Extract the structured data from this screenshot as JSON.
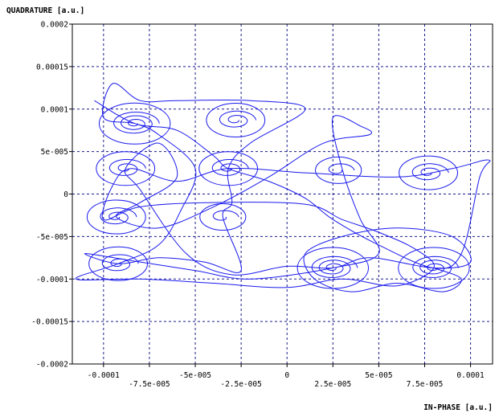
{
  "chart_data": {
    "type": "line",
    "xlabel": "IN-PHASE  [a.u.]",
    "ylabel": "QUADRATURE  [a.u.]",
    "xlim": [
      -0.000117,
      0.000112
    ],
    "ylim": [
      -0.0002,
      0.0002
    ],
    "grid": true,
    "grid_style": "dashed",
    "x_ticks_upper": [
      "-0.0001",
      "-5e-005",
      "0",
      "5e-005",
      "0.0001"
    ],
    "x_ticks_upper_values": [
      -0.0001,
      -5e-05,
      0,
      5e-05,
      0.0001
    ],
    "x_ticks_lower": [
      "-7.5e-005",
      "-2.5e-005",
      "2.5e-005",
      "7.5e-005"
    ],
    "x_ticks_lower_values": [
      -7.5e-05,
      -2.5e-05,
      2.5e-05,
      7.5e-05
    ],
    "y_ticks": [
      "-0.0002",
      "-0.00015",
      "-0.0001",
      "-5e-005",
      "0",
      "5e-005",
      "0.0001",
      "0.00015",
      "0.0002"
    ],
    "y_ticks_values": [
      -0.0002,
      -0.00015,
      -0.0001,
      -5e-05,
      0,
      5e-05,
      0.0001,
      0.00015,
      0.0002
    ],
    "series_color": "#1a1aee",
    "spirals": [
      {
        "x": -8.3e-05,
        "y": 8.3e-05,
        "turns": 3
      },
      {
        "x": -8.8e-05,
        "y": 3e-05,
        "turns": 2
      },
      {
        "x": -9.3e-05,
        "y": -2.7e-05,
        "turns": 2
      },
      {
        "x": -9.2e-05,
        "y": -8.2e-05,
        "turns": 2
      },
      {
        "x": -3.2e-05,
        "y": 3e-05,
        "turns": 2
      },
      {
        "x": -3.5e-05,
        "y": -2.7e-05,
        "turns": 1
      },
      {
        "x": -2.8e-05,
        "y": 8.7e-05,
        "turns": 2
      },
      {
        "x": 2.5e-05,
        "y": -8.7e-05,
        "turns": 3
      },
      {
        "x": 2.8e-05,
        "y": 2.8e-05,
        "turns": 1
      },
      {
        "x": 8e-05,
        "y": -8.7e-05,
        "turns": 3
      },
      {
        "x": 7.7e-05,
        "y": 2.5e-05,
        "turns": 2
      }
    ],
    "path": [
      [
        -0.000105,
        0.00011
      ],
      [
        -8.3e-05,
        8.3e-05
      ],
      [
        -6e-05,
        7.5e-05
      ],
      [
        -4e-05,
        4.5e-05
      ],
      [
        -3.2e-05,
        3e-05
      ],
      [
        -1e-05,
        1.5e-05
      ],
      [
        1e-05,
        -5e-06
      ],
      [
        2.5e-05,
        -3e-05
      ],
      [
        5e-05,
        -6e-05
      ],
      [
        8e-05,
        -8.7e-05
      ],
      [
        9.5e-05,
        -7e-05
      ],
      [
        0.000105,
        2e-05
      ],
      [
        0.00011,
        4e-05
      ],
      [
        9e-05,
        3e-05
      ],
      [
        6e-05,
        2e-05
      ],
      [
        1e-05,
        2.5e-05
      ],
      [
        -3.2e-05,
        3e-05
      ],
      [
        -6e-05,
        1.5e-05
      ],
      [
        -8.5e-05,
        3e-05
      ],
      [
        -9.5e-05,
        1e-05
      ],
      [
        -0.0001,
        -3e-05
      ],
      [
        -8e-05,
        -1.5e-05
      ],
      [
        -4e-05,
        -1e-05
      ],
      [
        1e-05,
        -1.2e-05
      ],
      [
        3e-05,
        -3e-05
      ],
      [
        5e-05,
        -4.5e-05
      ],
      [
        7e-05,
        -6.5e-05
      ],
      [
        8e-05,
        -8.7e-05
      ],
      [
        6e-05,
        -0.000108
      ],
      [
        3e-05,
        -0.0001
      ],
      [
        0.0,
        -0.00011
      ],
      [
        -4e-05,
        -0.000105
      ],
      [
        -8e-05,
        -0.0001
      ],
      [
        -0.000115,
        -0.0001
      ],
      [
        -9.2e-05,
        -8.2e-05
      ],
      [
        -7e-05,
        -6e-05
      ],
      [
        -5.8e-05,
        -2e-05
      ],
      [
        -5e-05,
        3e-05
      ],
      [
        -7e-05,
        7e-05
      ],
      [
        -8.3e-05,
        8.3e-05
      ],
      [
        -0.0001,
        9e-05
      ],
      [
        -9.5e-05,
        0.00013
      ],
      [
        -8e-05,
        0.00011
      ],
      [
        -6e-05,
        0.00011
      ],
      [
        -2e-05,
        0.00011
      ],
      [
        1e-05,
        0.0001
      ],
      [
        -2e-05,
        6e-05
      ],
      [
        -3.2e-05,
        3e-05
      ],
      [
        -3e-05,
        -1e-05
      ],
      [
        -3.5e-05,
        -2.7e-05
      ],
      [
        -2.5e-05,
        -9e-05
      ],
      [
        -4.5e-05,
        -8e-05
      ],
      [
        -7e-05,
        -7.5e-05
      ],
      [
        -9.2e-05,
        -8.2e-05
      ],
      [
        -0.00011,
        -7e-05
      ],
      [
        -8e-05,
        -8e-05
      ],
      [
        -5e-05,
        -9e-05
      ],
      [
        -2e-05,
        -0.0001
      ],
      [
        2.5e-05,
        -8.7e-05
      ],
      [
        5e-05,
        -7e-05
      ],
      [
        4e-05,
        -3e-05
      ],
      [
        3e-05,
        3e-05
      ],
      [
        2.5e-05,
        9e-05
      ],
      [
        4e-05,
        8e-05
      ],
      [
        4.5e-05,
        7e-05
      ],
      [
        2e-05,
        6e-05
      ],
      [
        -1e-05,
        2e-05
      ],
      [
        -4e-05,
        -1.5e-05
      ],
      [
        -7e-05,
        -4e-05
      ],
      [
        -9.3e-05,
        -2.7e-05
      ],
      [
        -8e-05,
        -1e-05
      ],
      [
        -6e-05,
        2e-05
      ],
      [
        -7e-05,
        6e-05
      ],
      [
        -8.8e-05,
        3e-05
      ],
      [
        -8e-05,
        5e-06
      ],
      [
        -5.5e-05,
        -7e-05
      ],
      [
        -3e-05,
        -9.5e-05
      ],
      [
        0.0,
        -8.5e-05
      ],
      [
        2.5e-05,
        -8.7e-05
      ],
      [
        4.5e-05,
        -7.5e-05
      ],
      [
        8e-05,
        -8.7e-05
      ],
      [
        0.0001,
        -8e-05
      ],
      [
        9e-05,
        -5e-05
      ],
      [
        6e-05,
        -4e-05
      ],
      [
        3e-05,
        -5e-05
      ],
      [
        1e-05,
        -7e-05
      ],
      [
        1.5e-05,
        -0.0001
      ],
      [
        3.5e-05,
        -0.000115
      ],
      [
        6e-05,
        -0.000105
      ],
      [
        8.5e-05,
        -0.000115
      ],
      [
        9.5e-05,
        -0.0001
      ],
      [
        8e-05,
        -8.7e-05
      ]
    ]
  }
}
